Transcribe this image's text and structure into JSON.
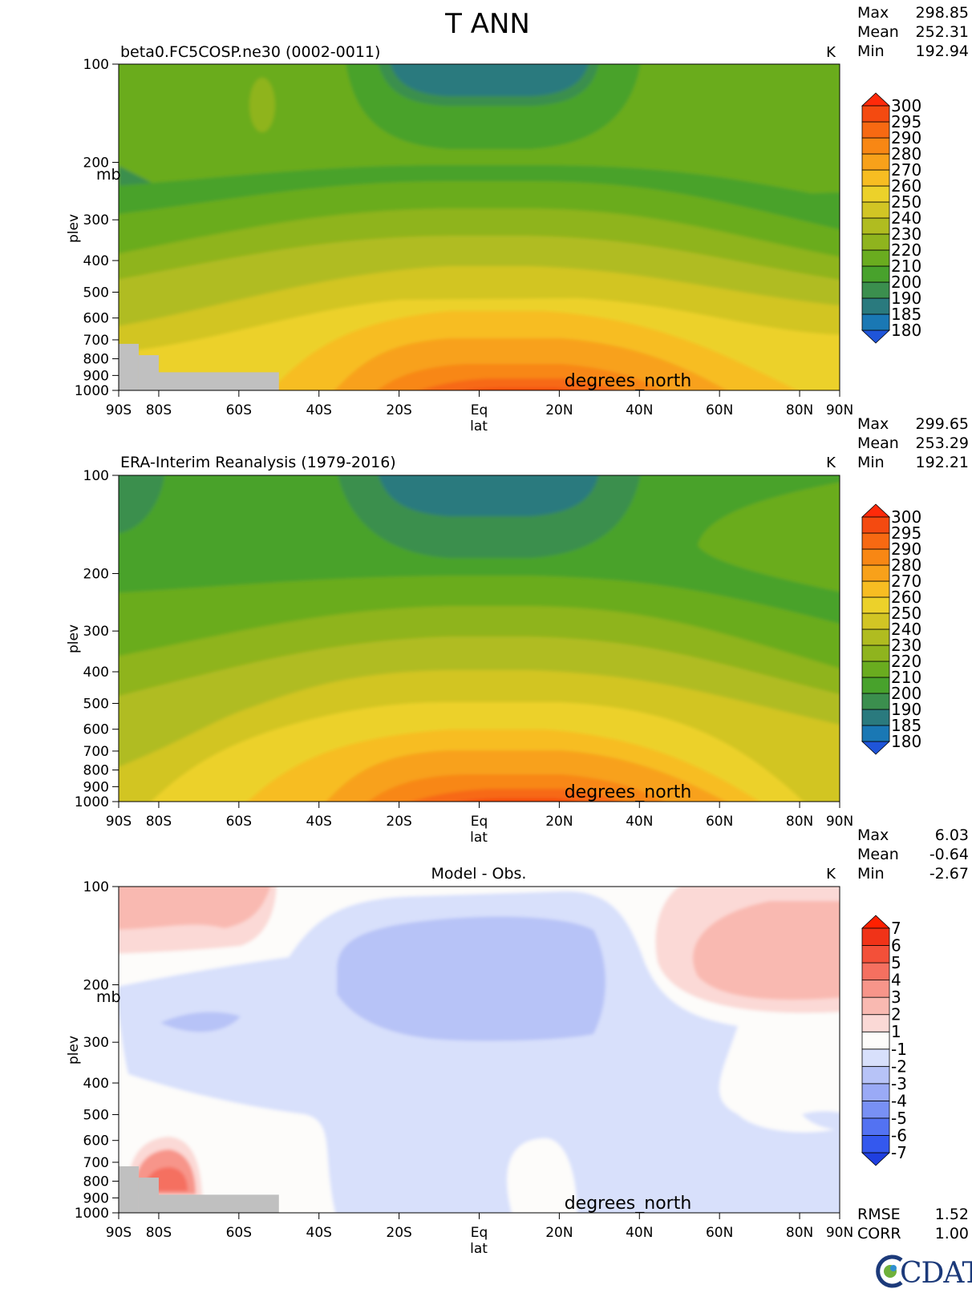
{
  "title": "T ANN",
  "chart_data": [
    {
      "type": "heatmap",
      "panel": "model",
      "subtitle": "beta0.FC5COSP.ne30 (0002-0011)",
      "units": "K",
      "stats": {
        "max_label": "Max",
        "max": "298.85",
        "mean_label": "Mean",
        "mean": "252.31",
        "min_label": "Min",
        "min": "192.94"
      },
      "xlabel": "lat",
      "ylabel": "plev",
      "yunits": "mb",
      "xaxis_name": "degrees_north",
      "xticks": [
        {
          "value": -90,
          "label": "90S"
        },
        {
          "value": -80,
          "label": "80S"
        },
        {
          "value": -60,
          "label": "60S"
        },
        {
          "value": -40,
          "label": "40S"
        },
        {
          "value": -20,
          "label": "20S"
        },
        {
          "value": 0,
          "label": "Eq"
        },
        {
          "value": 20,
          "label": "20N"
        },
        {
          "value": 40,
          "label": "40N"
        },
        {
          "value": 60,
          "label": "60N"
        },
        {
          "value": 80,
          "label": "80N"
        },
        {
          "value": 90,
          "label": "90N"
        }
      ],
      "yticks": [
        {
          "value": 100,
          "label": "100"
        },
        {
          "value": 200,
          "label": "200"
        },
        {
          "value": 300,
          "label": "300"
        },
        {
          "value": 400,
          "label": "400"
        },
        {
          "value": 500,
          "label": "500"
        },
        {
          "value": 600,
          "label": "600"
        },
        {
          "value": 700,
          "label": "700"
        },
        {
          "value": 800,
          "label": "800"
        },
        {
          "value": 900,
          "label": "900"
        },
        {
          "value": 1000,
          "label": "1000"
        }
      ],
      "xlim": [
        -90,
        90
      ],
      "ylim": [
        1000,
        100
      ],
      "yscale": "log",
      "levels": [
        "180",
        "185",
        "190",
        "200",
        "210",
        "220",
        "230",
        "240",
        "250",
        "260",
        "270",
        "280",
        "290",
        "295",
        "300"
      ],
      "colors": [
        "#1f55d9",
        "#1a78b4",
        "#2a7a7e",
        "#3b8f4e",
        "#48a22c",
        "#6aac1f",
        "#8fb41e",
        "#b0bc20",
        "#d2c524",
        "#ecd12a",
        "#f7bd22",
        "#f8a11a",
        "#f88714",
        "#f76912",
        "#f44a10",
        "#ff2a0a"
      ],
      "missing": [
        {
          "lat_min": -90,
          "lat_max": -85,
          "p_min": 720
        },
        {
          "lat_min": -85,
          "lat_max": -50,
          "p_min": 880
        },
        {
          "lat_min": -85,
          "lat_max": -80,
          "p_min": 780
        }
      ]
    },
    {
      "type": "heatmap",
      "panel": "observations",
      "subtitle": "ERA-Interim Reanalysis (1979-2016)",
      "units": "K",
      "stats": {
        "max_label": "Max",
        "max": "299.65",
        "mean_label": "Mean",
        "mean": "253.29",
        "min_label": "Min",
        "min": "192.21"
      },
      "xlabel": "lat",
      "ylabel": "plev",
      "xaxis_name": "degrees_north",
      "xlim": [
        -90,
        90
      ],
      "ylim": [
        1000,
        100
      ],
      "yscale": "log",
      "levels": [
        "180",
        "185",
        "190",
        "200",
        "210",
        "220",
        "230",
        "240",
        "250",
        "260",
        "270",
        "280",
        "290",
        "295",
        "300"
      ],
      "colors": [
        "#1f55d9",
        "#1a78b4",
        "#2a7a7e",
        "#3b8f4e",
        "#48a22c",
        "#6aac1f",
        "#8fb41e",
        "#b0bc20",
        "#d2c524",
        "#ecd12a",
        "#f7bd22",
        "#f8a11a",
        "#f88714",
        "#f76912",
        "#f44a10",
        "#ff2a0a"
      ]
    },
    {
      "type": "heatmap",
      "panel": "difference",
      "subtitle": "Model - Obs.",
      "units": "K",
      "stats": {
        "max_label": "Max",
        "max": "6.03",
        "mean_label": "Mean",
        "mean": "-0.64",
        "min_label": "Min",
        "min": "-2.67"
      },
      "metrics": {
        "rmse_label": "RMSE",
        "rmse": "1.52",
        "corr_label": "CORR",
        "corr": "1.00"
      },
      "xlabel": "lat",
      "ylabel": "plev",
      "yunits": "mb",
      "xaxis_name": "degrees_north",
      "xlim": [
        -90,
        90
      ],
      "ylim": [
        1000,
        100
      ],
      "yscale": "log",
      "levels": [
        "-7",
        "-6",
        "-5",
        "-4",
        "-3",
        "-2",
        "-1",
        "1",
        "2",
        "3",
        "4",
        "5",
        "6",
        "7"
      ],
      "colors": [
        "#1f3fe0",
        "#3458ee",
        "#5372f2",
        "#7890f4",
        "#9aaaf6",
        "#b7c3f7",
        "#d8e0fb",
        "#fdfcfa",
        "#fbd9d6",
        "#f9b9b1",
        "#f7958a",
        "#f57060",
        "#f35039",
        "#f03318",
        "#ff2000"
      ],
      "missing": [
        {
          "lat_min": -90,
          "lat_max": -85,
          "p_min": 720
        },
        {
          "lat_min": -85,
          "lat_max": -50,
          "p_min": 880
        },
        {
          "lat_min": -85,
          "lat_max": -80,
          "p_min": 780
        }
      ]
    }
  ],
  "logo": "CDAT"
}
